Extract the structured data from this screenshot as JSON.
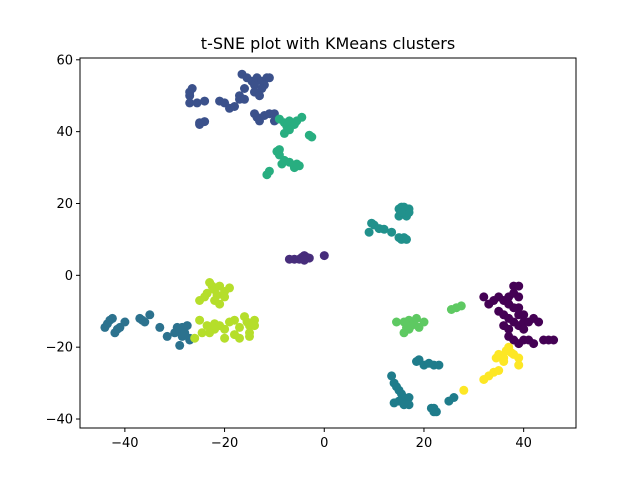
{
  "chart_data": {
    "type": "scatter",
    "title": "t-SNE plot with KMeans clusters",
    "xlabel": "",
    "ylabel": "",
    "xlim": [
      -49,
      50.5
    ],
    "ylim": [
      -42.5,
      60.5
    ],
    "xticks": [
      -40,
      -20,
      0,
      20,
      40
    ],
    "yticks": [
      -40,
      -20,
      0,
      20,
      40,
      60
    ],
    "xtick_labels": [
      "−40",
      "−20",
      "0",
      "20",
      "40"
    ],
    "ytick_labels": [
      "−40",
      "−20",
      "0",
      "20",
      "40",
      "60"
    ],
    "grid": false,
    "legend": "none",
    "colormap": "viridis",
    "series": [
      {
        "color": "#440154",
        "points": [
          [
            32,
            -6
          ],
          [
            33,
            -8
          ],
          [
            34,
            -7
          ],
          [
            35,
            -6
          ],
          [
            36,
            -7
          ],
          [
            37,
            -6
          ],
          [
            38,
            -5
          ],
          [
            38,
            -3
          ],
          [
            39,
            -3
          ],
          [
            39,
            -6
          ],
          [
            37,
            -8
          ],
          [
            35,
            -10
          ],
          [
            36,
            -11
          ],
          [
            37,
            -12
          ],
          [
            38,
            -13
          ],
          [
            36,
            -14
          ],
          [
            37,
            -15
          ],
          [
            39,
            -14
          ],
          [
            39,
            -11
          ],
          [
            39,
            -9
          ],
          [
            40,
            -13
          ],
          [
            40,
            -15
          ],
          [
            41,
            -13
          ],
          [
            42,
            -12
          ],
          [
            43,
            -13
          ],
          [
            37,
            -17
          ],
          [
            38,
            -18
          ],
          [
            39,
            -19
          ],
          [
            40,
            -18
          ],
          [
            41,
            -18
          ],
          [
            42,
            -19
          ],
          [
            44,
            -18
          ],
          [
            45,
            -18
          ],
          [
            46,
            -18
          ],
          [
            38,
            -9
          ],
          [
            40,
            -11
          ]
        ]
      },
      {
        "color": "#472d7b",
        "points": [
          [
            -7,
            4.5
          ],
          [
            -6,
            4.5
          ],
          [
            -5,
            4.5
          ],
          [
            -4.5,
            5
          ],
          [
            -4,
            5.5
          ],
          [
            -3.5,
            5
          ],
          [
            -3,
            4.8
          ],
          [
            -4,
            4.2
          ],
          [
            0,
            5.5
          ]
        ]
      },
      {
        "color": "#3b518b",
        "points": [
          [
            -27,
            48
          ],
          [
            -27,
            50
          ],
          [
            -27,
            51
          ],
          [
            -26.5,
            52
          ],
          [
            -25.5,
            48
          ],
          [
            -24,
            48.5
          ],
          [
            -21,
            48.5
          ],
          [
            -20,
            48
          ],
          [
            -19,
            46.5
          ],
          [
            -18,
            47
          ],
          [
            -17,
            49
          ],
          [
            -17,
            50
          ],
          [
            -16,
            49
          ],
          [
            -16,
            52
          ],
          [
            -16.5,
            56
          ],
          [
            -15.5,
            55
          ],
          [
            -14.5,
            54
          ],
          [
            -14,
            53
          ],
          [
            -14,
            51
          ],
          [
            -13.5,
            55
          ],
          [
            -12.5,
            54
          ],
          [
            -11.5,
            55
          ],
          [
            -11,
            55
          ],
          [
            -12,
            53
          ],
          [
            -12.5,
            52
          ],
          [
            -13,
            50
          ],
          [
            -14,
            45
          ],
          [
            -13.5,
            44
          ],
          [
            -13,
            43
          ],
          [
            -12,
            44.5
          ],
          [
            -11,
            45
          ],
          [
            -10,
            45
          ],
          [
            -10,
            43
          ],
          [
            -25,
            42.5
          ],
          [
            -24,
            42.8
          ],
          [
            -25,
            42
          ]
        ]
      },
      {
        "color": "#2c728e",
        "points": [
          [
            -44,
            -14.5
          ],
          [
            -43.5,
            -13.5
          ],
          [
            -43,
            -12.5
          ],
          [
            -42.5,
            -12
          ],
          [
            -42,
            -16
          ],
          [
            -41.5,
            -15
          ],
          [
            -41,
            -14.5
          ],
          [
            -40,
            -13
          ],
          [
            -37,
            -12
          ],
          [
            -36.5,
            -12.5
          ],
          [
            -36,
            -13
          ],
          [
            -35,
            -11
          ],
          [
            -33,
            -14.5
          ],
          [
            -31.5,
            -17
          ],
          [
            -30,
            -16
          ],
          [
            -29.5,
            -14.5
          ],
          [
            -29,
            -15
          ],
          [
            -28.5,
            -14.5
          ],
          [
            -28.5,
            -17
          ],
          [
            -29,
            -19.5
          ],
          [
            -28,
            -16
          ],
          [
            -27.5,
            -14
          ],
          [
            -27,
            -17.5
          ],
          [
            -27,
            -18
          ]
        ]
      },
      {
        "color": "#21918c",
        "points": [
          [
            9,
            12
          ],
          [
            9.5,
            14.5
          ],
          [
            10,
            14
          ],
          [
            11,
            13
          ],
          [
            12,
            12.8
          ],
          [
            13.5,
            12
          ],
          [
            15,
            10.5
          ],
          [
            15.5,
            10
          ],
          [
            16,
            10.5
          ],
          [
            16.5,
            10
          ],
          [
            15,
            16.5
          ],
          [
            15,
            18.5
          ],
          [
            15.5,
            19
          ],
          [
            16,
            17
          ],
          [
            16,
            18
          ],
          [
            16.5,
            16.5
          ],
          [
            17,
            17.5
          ],
          [
            17,
            18.5
          ],
          [
            16,
            19
          ],
          [
            15.5,
            17.5
          ]
        ]
      },
      {
        "color": "#28ae80",
        "points": [
          [
            -9,
            43.5
          ],
          [
            -8,
            42.5
          ],
          [
            -7.5,
            41.5
          ],
          [
            -7,
            43
          ],
          [
            -6,
            42
          ],
          [
            -5.5,
            43
          ],
          [
            -4.5,
            44
          ],
          [
            -8,
            39.5
          ],
          [
            -7,
            40.5
          ],
          [
            -3,
            39
          ],
          [
            -2.5,
            38.5
          ],
          [
            -9.5,
            34.5
          ],
          [
            -9,
            35
          ],
          [
            -9,
            33.5
          ],
          [
            -8.5,
            31
          ],
          [
            -8,
            32
          ],
          [
            -7,
            31.5
          ],
          [
            -6,
            30
          ],
          [
            -5.5,
            31
          ],
          [
            -11,
            29
          ],
          [
            -11.5,
            28
          ],
          [
            -5,
            30.5
          ]
        ]
      },
      {
        "color": "#1f7c8b",
        "points": [
          [
            13.5,
            -28
          ],
          [
            14,
            -30
          ],
          [
            14.5,
            -31
          ],
          [
            15,
            -32
          ],
          [
            15.5,
            -33
          ],
          [
            16,
            -34
          ],
          [
            15,
            -35
          ],
          [
            16,
            -36
          ],
          [
            17,
            -34
          ],
          [
            17,
            -36
          ],
          [
            14,
            -35.5
          ],
          [
            18.5,
            -24
          ],
          [
            19,
            -23.5
          ],
          [
            20,
            -25
          ],
          [
            21,
            -24.5
          ],
          [
            22,
            -25
          ],
          [
            23,
            -25
          ],
          [
            22,
            -37
          ],
          [
            22.5,
            -38
          ],
          [
            22,
            -38
          ],
          [
            21.5,
            -37
          ],
          [
            25,
            -35
          ],
          [
            26,
            -34
          ]
        ]
      },
      {
        "color": "#5ec962",
        "points": [
          [
            14.5,
            -13
          ],
          [
            16,
            -13
          ],
          [
            16.5,
            -14.5
          ],
          [
            17,
            -15
          ],
          [
            17,
            -12.5
          ],
          [
            17.5,
            -14
          ],
          [
            18,
            -13.5
          ],
          [
            18.5,
            -12
          ],
          [
            19,
            -14.5
          ],
          [
            20,
            -13
          ],
          [
            16,
            -16
          ],
          [
            25.5,
            -9.5
          ],
          [
            26.5,
            -9
          ],
          [
            27.5,
            -8.5
          ]
        ]
      },
      {
        "color": "#b5de2b",
        "points": [
          [
            -23,
            -2
          ],
          [
            -22.5,
            -3
          ],
          [
            -22,
            -4
          ],
          [
            -21,
            -3
          ],
          [
            -20,
            -4.5
          ],
          [
            -19,
            -3.5
          ],
          [
            -21.5,
            -5.5
          ],
          [
            -23.5,
            -5
          ],
          [
            -24,
            -6
          ],
          [
            -25,
            -7
          ],
          [
            -22,
            -7
          ],
          [
            -21,
            -8
          ],
          [
            -20,
            -6
          ],
          [
            -25,
            -12.5
          ],
          [
            -23.5,
            -14
          ],
          [
            -22,
            -13.5
          ],
          [
            -21,
            -14
          ],
          [
            -20,
            -15
          ],
          [
            -19,
            -13
          ],
          [
            -18,
            -12.5
          ],
          [
            -17,
            -14.5
          ],
          [
            -18,
            -16.5
          ],
          [
            -17,
            -17.5
          ],
          [
            -16,
            -11.5
          ],
          [
            -15.5,
            -13
          ],
          [
            -15,
            -14
          ],
          [
            -14,
            -12.5
          ],
          [
            -14,
            -14
          ],
          [
            -15,
            -16
          ],
          [
            -15,
            -17
          ],
          [
            -20,
            -17.5
          ],
          [
            -22,
            -15
          ],
          [
            -23,
            -16
          ],
          [
            -24.5,
            -16
          ],
          [
            -26,
            -17.5
          ]
        ]
      },
      {
        "color": "#fde725",
        "points": [
          [
            32,
            -29
          ],
          [
            33,
            -28
          ],
          [
            34,
            -27
          ],
          [
            35,
            -26.5
          ],
          [
            34.5,
            -23
          ],
          [
            35,
            -22
          ],
          [
            36,
            -23
          ],
          [
            36.5,
            -21
          ],
          [
            37,
            -20
          ],
          [
            37.5,
            -21.5
          ],
          [
            38,
            -22
          ],
          [
            39,
            -23
          ],
          [
            39,
            -25
          ],
          [
            28,
            -32
          ],
          [
            36,
            -24
          ]
        ]
      }
    ]
  }
}
